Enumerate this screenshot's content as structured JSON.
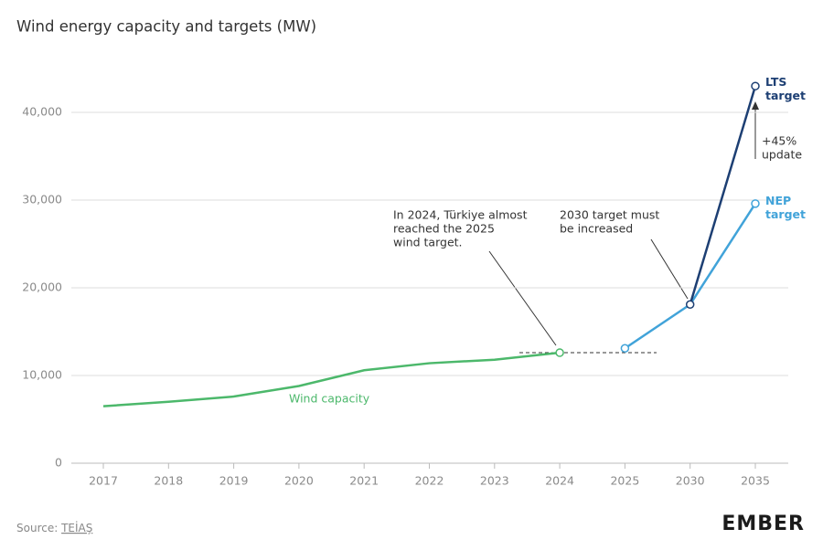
{
  "chart_data": {
    "type": "line",
    "subtitle": "Wind energy capacity and targets (MW)",
    "categories": [
      "2017",
      "2018",
      "2019",
      "2020",
      "2021",
      "2022",
      "2023",
      "2024",
      "2025",
      "2030",
      "2035"
    ],
    "series": [
      {
        "name": "Wind capacity",
        "color": "#4cb86b",
        "values": [
          6500,
          7000,
          7600,
          8800,
          10600,
          11400,
          11800,
          12600,
          null,
          null,
          null
        ]
      },
      {
        "name": "NEP target",
        "color": "#41a3d9",
        "values": [
          null,
          null,
          null,
          null,
          null,
          null,
          null,
          null,
          13100,
          18100,
          29600
        ]
      },
      {
        "name": "LTS target",
        "color": "#1d3f73",
        "values": [
          null,
          null,
          null,
          null,
          null,
          null,
          null,
          null,
          null,
          18100,
          43000
        ]
      }
    ],
    "ylim": [
      0,
      48000
    ],
    "yticks": [
      0,
      {
        "value": 10000,
        "label": "10,000"
      },
      {
        "value": 20000,
        "label": "20,000"
      },
      {
        "value": 30000,
        "label": "30,000"
      },
      {
        "value": 40000,
        "label": "40,000"
      }
    ],
    "grid": true,
    "annotations": [
      {
        "lines": [
          "In 2024, Türkiye almost",
          "reached the 2025",
          "wind target."
        ]
      },
      {
        "lines": [
          "2030 target must",
          "be increased"
        ]
      },
      {
        "lines": [
          "+45%",
          "update"
        ]
      }
    ],
    "source_prefix": "Source: ",
    "source": "TEİAŞ",
    "logo": "EMBER"
  }
}
